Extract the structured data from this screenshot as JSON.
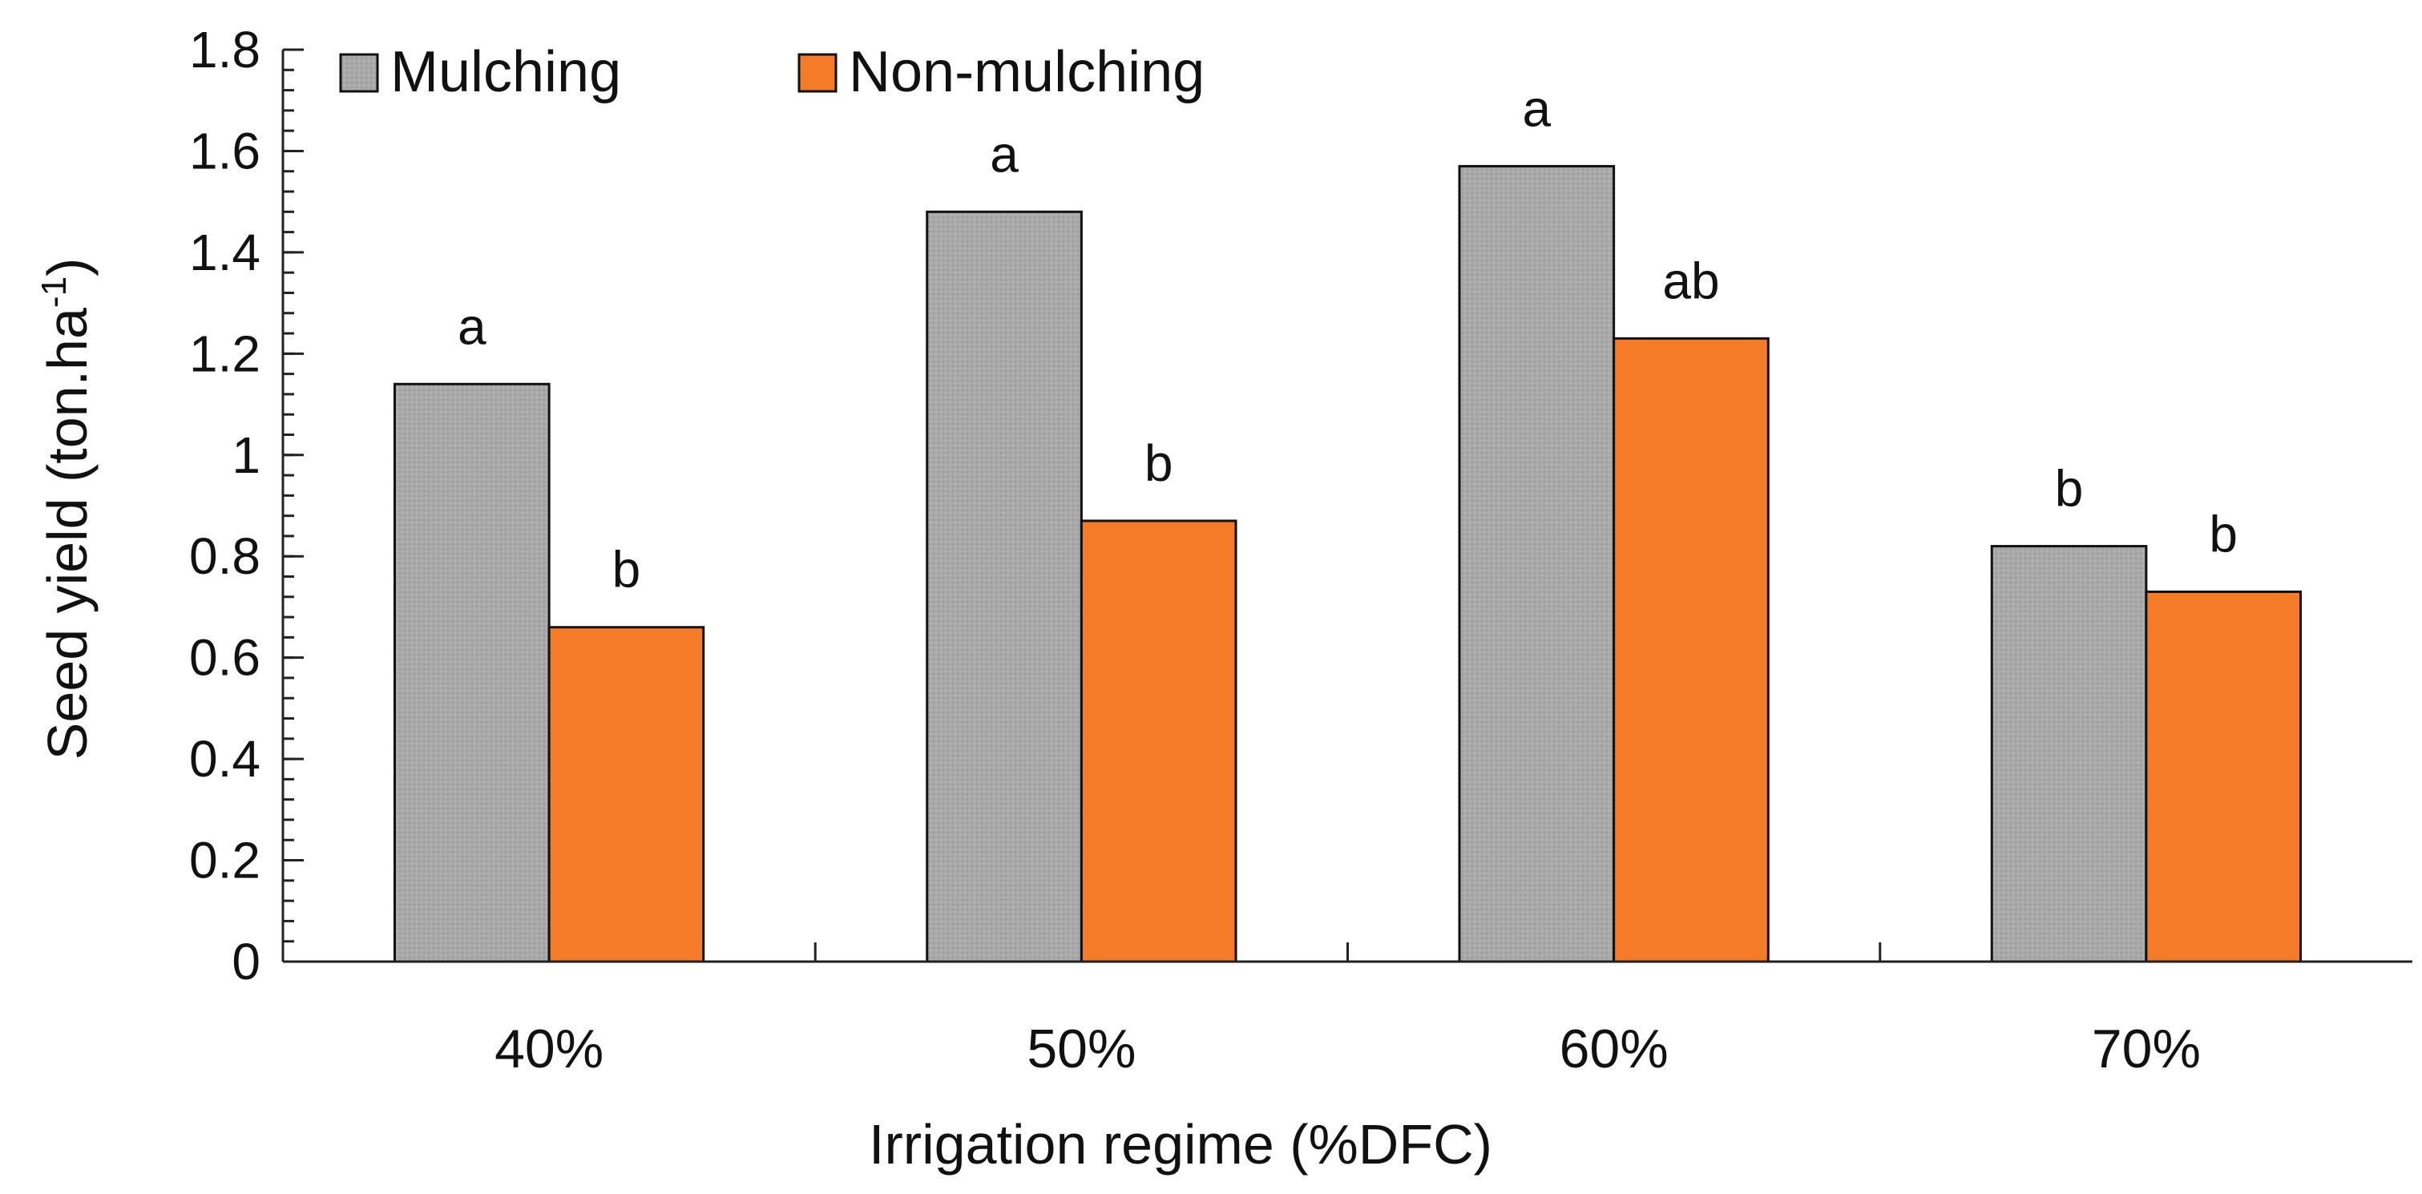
{
  "chart_data": {
    "type": "bar",
    "title": "",
    "xlabel": "Irrigation regime (%DFC)",
    "ylabel": {
      "main": "Seed yield (ton.ha",
      "superscript": "-1",
      "close": ")"
    },
    "ylim": [
      0,
      1.8
    ],
    "yticks": [
      "0",
      "0.2",
      "0.4",
      "0.6",
      "0.8",
      "1",
      "1.2",
      "1.4",
      "1.6",
      "1.8"
    ],
    "yminor_step": 0.04,
    "categories": [
      "40%",
      "50%",
      "60%",
      "70%"
    ],
    "legend_position": "top-left",
    "series": [
      {
        "name": "Mulching",
        "color": "#a8a8a8",
        "values": [
          1.14,
          1.48,
          1.57,
          0.82
        ],
        "significance": [
          "a",
          "a",
          "a",
          "b"
        ]
      },
      {
        "name": "Non-mulching",
        "color": "#f47c28",
        "values": [
          0.66,
          0.87,
          1.23,
          0.73
        ],
        "significance": [
          "b",
          "b",
          "ab",
          "b"
        ]
      }
    ]
  }
}
